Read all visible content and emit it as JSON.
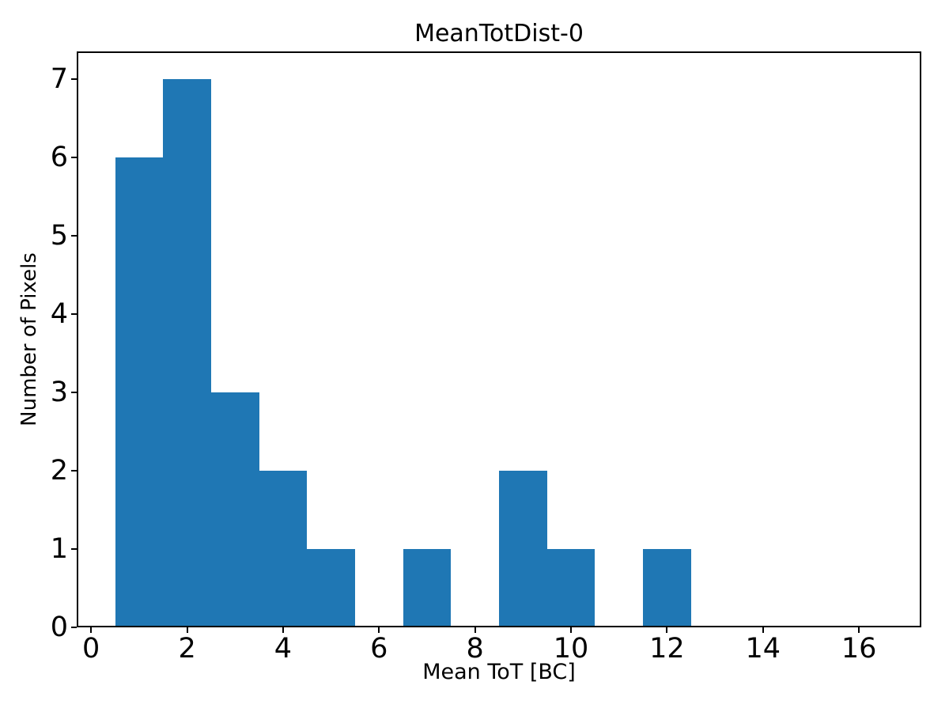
{
  "figure": {
    "background": "#ffffff",
    "text_color": "#000000"
  },
  "chart_data": {
    "type": "bar",
    "subtype": "histogram",
    "title": "MeanTotDist-0",
    "xlabel": "Mean ToT [BC]",
    "ylabel": "Number of Pixels",
    "bar_color": "#1f77b4",
    "bin_edges": [
      0.5,
      1.5,
      2.5,
      3.5,
      4.5,
      5.5,
      6.5,
      7.5,
      8.5,
      9.5,
      10.5,
      11.5,
      12.5,
      13.5,
      14.5,
      15.5,
      16.5
    ],
    "counts": [
      6,
      7,
      3,
      2,
      1,
      0,
      1,
      0,
      2,
      1,
      0,
      1,
      0,
      0,
      0,
      0
    ],
    "xlim": [
      -0.3,
      17.3
    ],
    "ylim": [
      0,
      7.35
    ],
    "xticks": [
      0,
      2,
      4,
      6,
      8,
      10,
      12,
      14,
      16
    ],
    "yticks": [
      0,
      1,
      2,
      3,
      4,
      5,
      6,
      7
    ],
    "grid": false,
    "legend_position": "none"
  }
}
